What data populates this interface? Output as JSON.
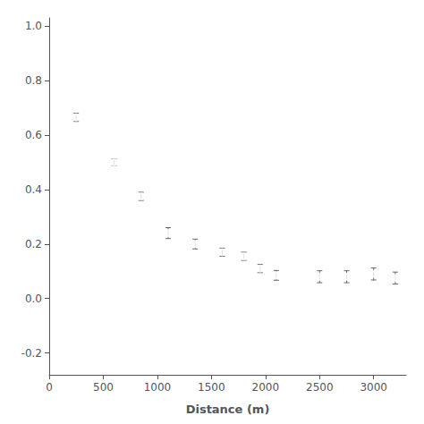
{
  "chart_data": {
    "type": "scatter",
    "x": [
      250,
      600,
      850,
      1100,
      1350,
      1600,
      1800,
      1950,
      2100,
      2500,
      2750,
      3000,
      3200
    ],
    "values": [
      0.665,
      0.5,
      0.375,
      0.24,
      0.2,
      0.17,
      0.155,
      0.11,
      0.085,
      0.08,
      0.08,
      0.09,
      0.075
    ],
    "yerr_low": [
      0.015,
      0.012,
      0.015,
      0.02,
      0.018,
      0.015,
      0.015,
      0.015,
      0.018,
      0.022,
      0.022,
      0.022,
      0.022
    ],
    "yerr_high": [
      0.015,
      0.012,
      0.015,
      0.02,
      0.018,
      0.015,
      0.015,
      0.015,
      0.018,
      0.022,
      0.022,
      0.022,
      0.022
    ],
    "xlabel": "Distance (m)",
    "xlim": [
      0,
      3300
    ],
    "ylim": [
      -0.28,
      1.03
    ],
    "xticks": [
      0,
      500,
      1000,
      1500,
      2000,
      2500,
      3000
    ],
    "yticks": [
      -0.2,
      {
        "value": 0,
        "label": "0.0"
      },
      0.2,
      0.4,
      0.6,
      0.8,
      {
        "value": 1,
        "label": "1.0"
      }
    ],
    "color": "#666666",
    "marker": "circle",
    "grid": false
  }
}
